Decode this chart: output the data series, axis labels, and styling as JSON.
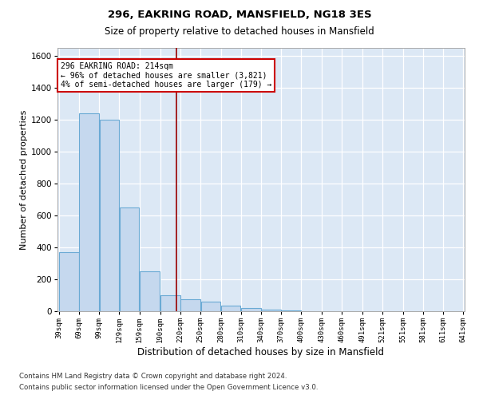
{
  "title1": "296, EAKRING ROAD, MANSFIELD, NG18 3ES",
  "title2": "Size of property relative to detached houses in Mansfield",
  "xlabel": "Distribution of detached houses by size in Mansfield",
  "ylabel": "Number of detached properties",
  "footer1": "Contains HM Land Registry data © Crown copyright and database right 2024.",
  "footer2": "Contains public sector information licensed under the Open Government Licence v3.0.",
  "annotation_line1": "296 EAKRING ROAD: 214sqm",
  "annotation_line2": "← 96% of detached houses are smaller (3,821)",
  "annotation_line3": "4% of semi-detached houses are larger (179) →",
  "bar_edges": [
    39,
    69,
    99,
    129,
    159,
    190,
    220,
    250,
    280,
    310,
    340,
    370,
    400,
    430,
    460,
    491,
    521,
    551,
    581,
    611,
    641
  ],
  "bar_heights": [
    370,
    1240,
    1200,
    650,
    250,
    100,
    75,
    60,
    35,
    20,
    12,
    4,
    0,
    0,
    0,
    0,
    0,
    0,
    0,
    0
  ],
  "property_size": 214,
  "bar_color": "#c5d8ee",
  "bar_edge_color": "#6aaad4",
  "marker_color": "#990000",
  "annotation_box_color": "#cc0000",
  "background_color": "#dce8f5",
  "grid_color": "#b8cfe0",
  "ylim": [
    0,
    1650
  ],
  "yticks": [
    0,
    200,
    400,
    600,
    800,
    1000,
    1200,
    1400,
    1600
  ]
}
